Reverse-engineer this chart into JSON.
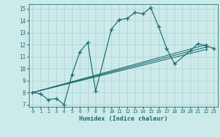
{
  "xlabel": "Humidex (Indice chaleur)",
  "ylabel": "",
  "bg_color": "#cdeaea",
  "grid_color": "#aed4d4",
  "line_color": "#1a6b6b",
  "marker": "+",
  "xlim": [
    -0.5,
    23.5
  ],
  "ylim": [
    6.8,
    15.4
  ],
  "xticks": [
    0,
    1,
    2,
    3,
    4,
    5,
    6,
    7,
    8,
    9,
    10,
    11,
    12,
    13,
    14,
    15,
    16,
    17,
    18,
    19,
    20,
    21,
    22,
    23
  ],
  "yticks": [
    7,
    8,
    9,
    10,
    11,
    12,
    13,
    14,
    15
  ],
  "series": [
    {
      "x": [
        0,
        1,
        2,
        3,
        4,
        5,
        6,
        7,
        8,
        10,
        11,
        12,
        13,
        14,
        15,
        16,
        17,
        18,
        20,
        21,
        22,
        23
      ],
      "y": [
        8.0,
        7.9,
        7.4,
        7.5,
        7.0,
        9.5,
        11.4,
        12.2,
        8.1,
        13.3,
        14.1,
        14.2,
        14.7,
        14.6,
        15.1,
        13.5,
        11.7,
        10.4,
        11.5,
        12.1,
        11.9,
        11.7
      ]
    },
    {
      "x": [
        0,
        22
      ],
      "y": [
        8.0,
        11.6
      ]
    },
    {
      "x": [
        0,
        22
      ],
      "y": [
        8.0,
        11.8
      ]
    },
    {
      "x": [
        0,
        22
      ],
      "y": [
        8.0,
        12.0
      ]
    }
  ]
}
